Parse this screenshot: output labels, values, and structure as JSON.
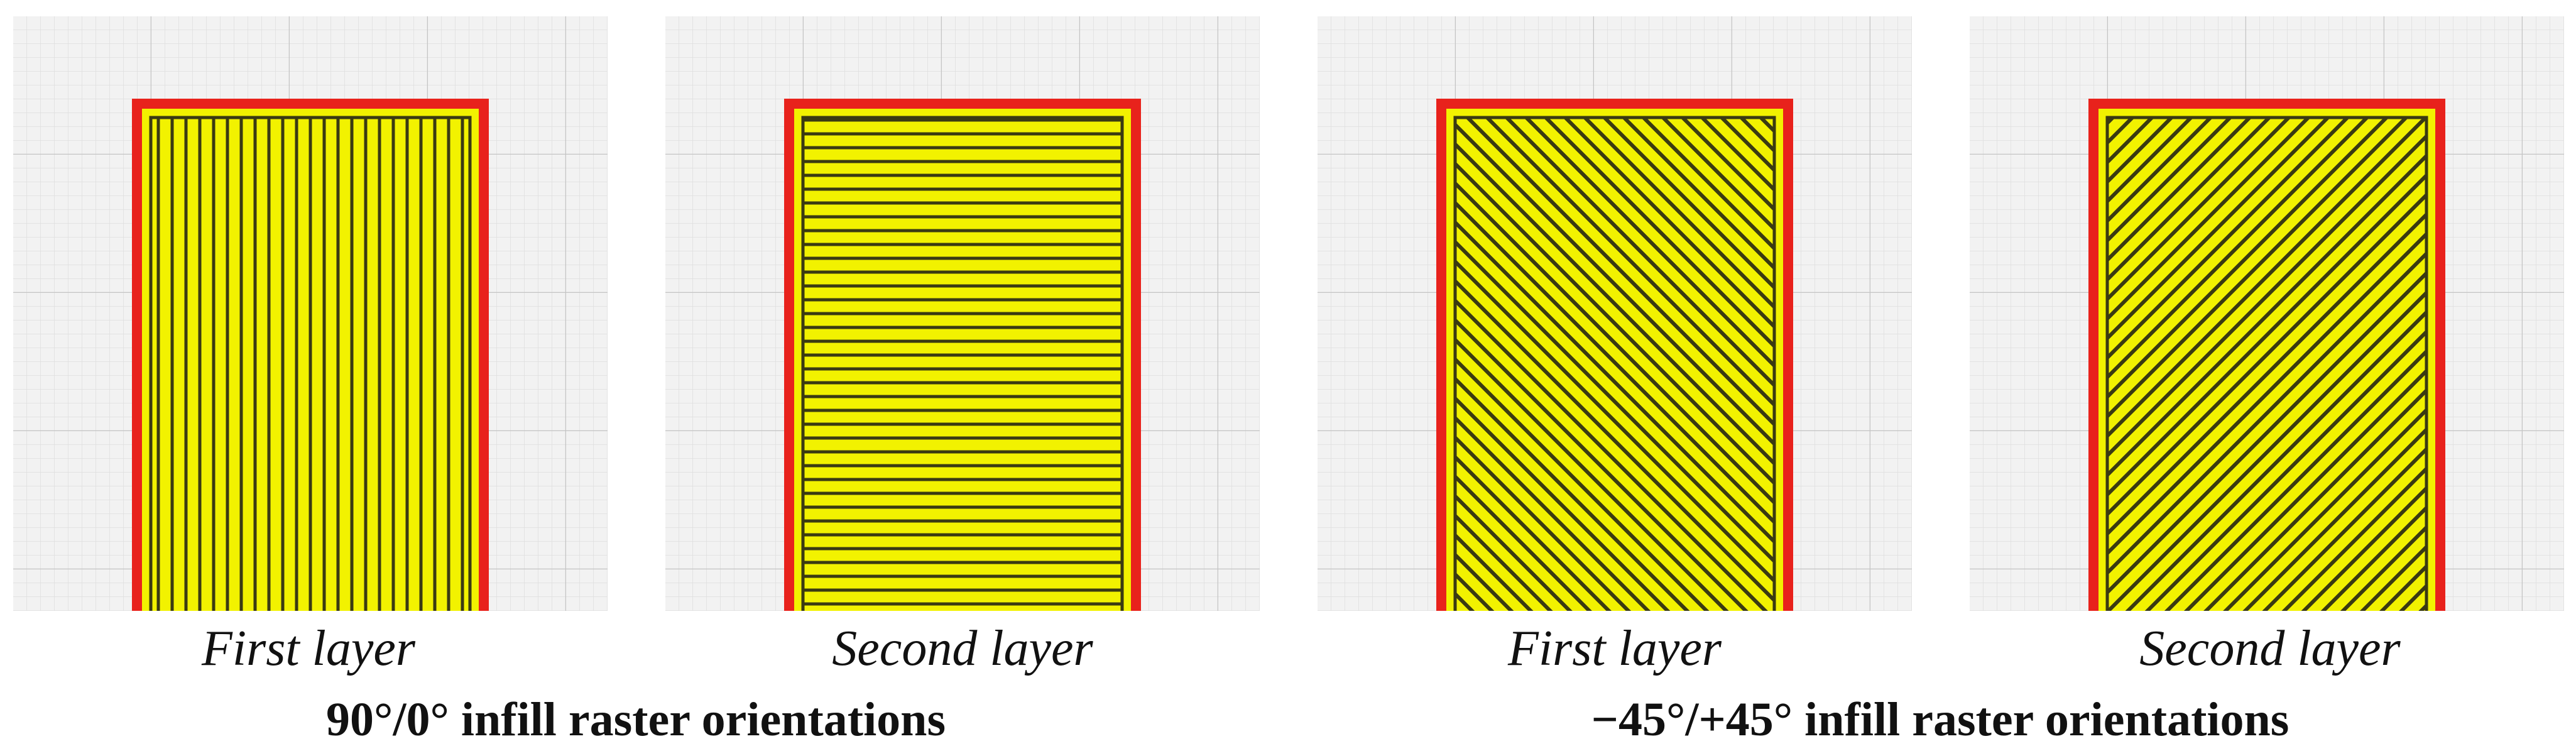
{
  "panels": [
    {
      "caption": "First layer"
    },
    {
      "caption": "Second layer"
    },
    {
      "caption": "First layer"
    },
    {
      "caption": "Second layer"
    }
  ],
  "groups": [
    {
      "title": "90°/0° infill raster orientations"
    },
    {
      "title": "−45°/+45° infill raster orientations"
    }
  ]
}
